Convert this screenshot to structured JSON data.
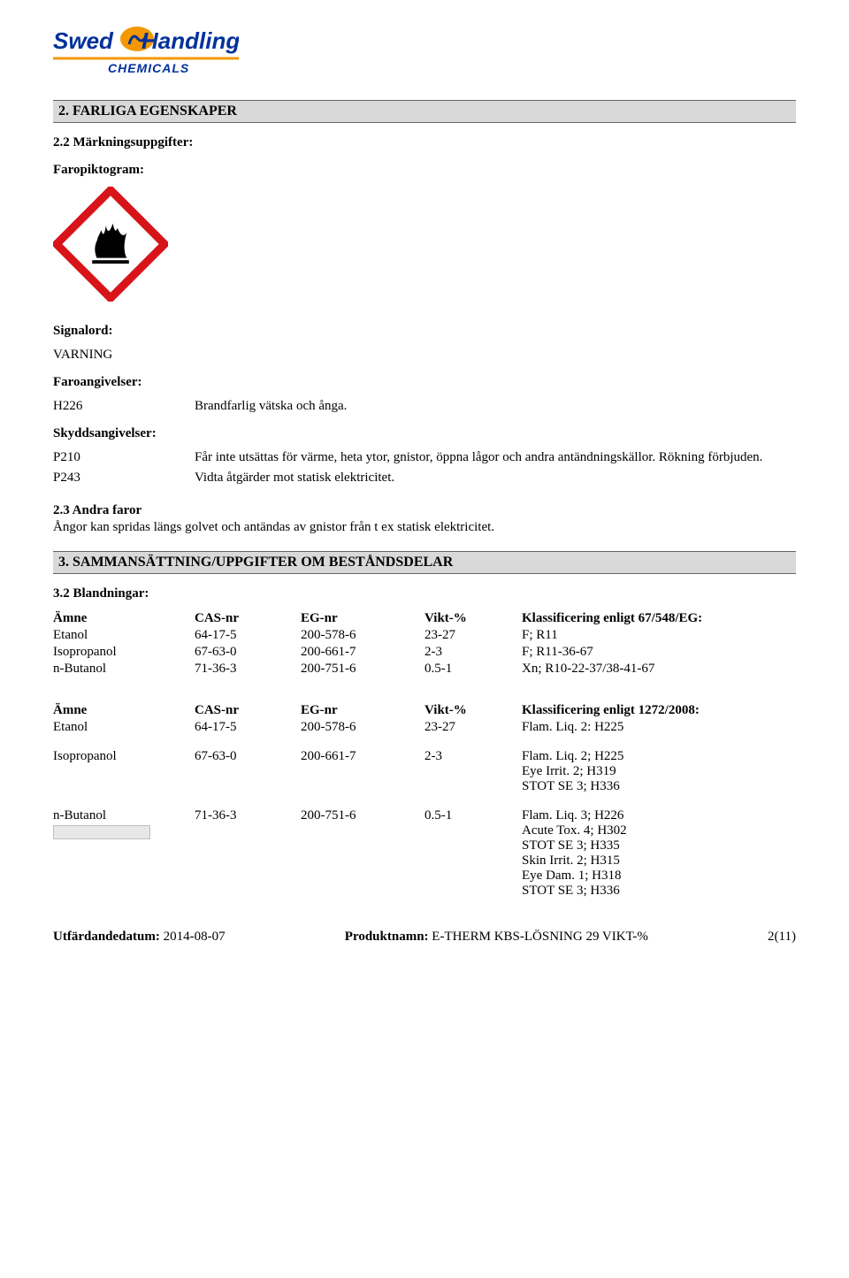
{
  "logo": {
    "brand_top": "Swed",
    "brand_right": "Handling",
    "subtitle": "CHEMICALS"
  },
  "section2": {
    "title": "2. FARLIGA EGENSKAPER",
    "sub_22": "2.2 Märkningsuppgifter:",
    "faropiktogram_label": "Faropiktogram:",
    "signalord_label": "Signalord:",
    "signalord_value": "VARNING",
    "faroangivelser_label": "Faroangivelser:",
    "h_statements": [
      {
        "code": "H226",
        "text": "Brandfarlig vätska och ånga."
      }
    ],
    "skyddsangivelser_label": "Skyddsangivelser:",
    "p_statements": [
      {
        "code": "P210",
        "text": "Får inte utsättas för värme, heta ytor, gnistor, öppna lågor och andra antändningskällor. Rökning förbjuden."
      },
      {
        "code": "P243",
        "text": "Vidta åtgärder mot statisk elektricitet."
      }
    ],
    "sub_23": "2.3 Andra faror",
    "sub_23_text": "Ångor kan spridas längs golvet och antändas av gnistor från t ex statisk elektricitet."
  },
  "section3": {
    "title": "3. SAMMANSÄTTNING/UPPGIFTER OM BESTÅNDSDELAR",
    "sub_32": "3.2 Blandningar:",
    "table_headers": {
      "amne": "Ämne",
      "cas": "CAS-nr",
      "eg": "EG-nr",
      "vikt": "Vikt-%",
      "klass_67548": "Klassificering enligt 67/548/EG:",
      "klass_1272": "Klassificering enligt 1272/2008:"
    },
    "table1_rows": [
      {
        "amne": "Etanol",
        "cas": "64-17-5",
        "eg": "200-578-6",
        "vikt": "23-27",
        "klass": [
          "F; R11"
        ]
      },
      {
        "amne": "Isopropanol",
        "cas": "67-63-0",
        "eg": "200-661-7",
        "vikt": "2-3",
        "klass": [
          "F; R11-36-67"
        ]
      },
      {
        "amne": "n-Butanol",
        "cas": "71-36-3",
        "eg": "200-751-6",
        "vikt": "0.5-1",
        "klass": [
          "Xn; R10-22-37/38-41-67"
        ]
      }
    ],
    "table2_rows": [
      {
        "amne": "Etanol",
        "cas": "64-17-5",
        "eg": "200-578-6",
        "vikt": "23-27",
        "klass": [
          "Flam. Liq. 2: H225"
        ]
      },
      {
        "amne": "Isopropanol",
        "cas": "67-63-0",
        "eg": "200-661-7",
        "vikt": "2-3",
        "klass": [
          "Flam. Liq. 2; H225",
          "Eye Irrit. 2; H319",
          "STOT SE 3; H336"
        ]
      },
      {
        "amne": "n-Butanol",
        "cas": "71-36-3",
        "eg": "200-751-6",
        "vikt": "0.5-1",
        "klass": [
          "Flam. Liq. 3; H226",
          "Acute Tox. 4; H302",
          "STOT SE 3; H335",
          "Skin Irrit. 2; H315",
          "Eye Dam. 1; H318",
          "STOT SE 3; H336"
        ]
      }
    ]
  },
  "footer": {
    "date_label": "Utfärdandedatum: ",
    "date_value": "2014-08-07",
    "product_label": "Produktnamn: ",
    "product_value": "E-THERM KBS-LÖSNING 29 VIKT-%",
    "page": "2(11)"
  },
  "colors": {
    "ghs_red": "#d7141a",
    "ghs_black": "#000000",
    "logo_blue": "#00319c",
    "logo_orange": "#f39800",
    "section_bg": "#d9d9d9"
  }
}
